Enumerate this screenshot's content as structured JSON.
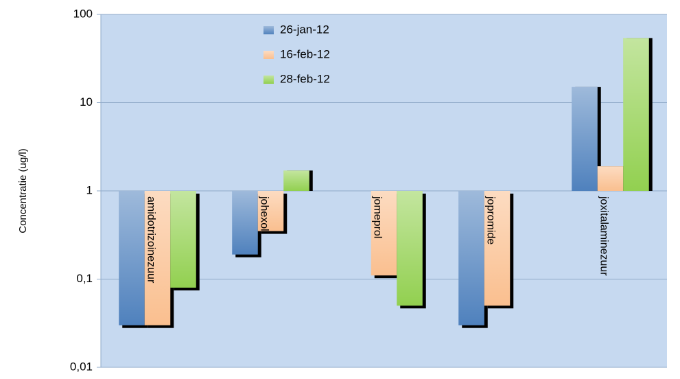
{
  "chart_data": {
    "type": "bar",
    "y_label": "Concentratie (ug/l)",
    "categories": [
      "amidotrizoinezuur",
      "johexol",
      "jomeprol",
      "jopromide",
      "joxitalaminezuur"
    ],
    "series": [
      {
        "name": "26-jan-12",
        "color": "#4f81bd",
        "values": [
          0.03,
          0.19,
          null,
          0.03,
          15
        ]
      },
      {
        "name": "16-feb-12",
        "color": "#fabf8f",
        "values": [
          0.03,
          0.35,
          0.11,
          0.05,
          1.9
        ]
      },
      {
        "name": "28-feb-12",
        "color": "#92d050",
        "values": [
          0.08,
          1.7,
          0.05,
          null,
          54
        ]
      }
    ],
    "ylim": [
      0.01,
      100
    ],
    "yticks": [
      {
        "value": 0.01,
        "label": "0,01"
      },
      {
        "value": 0.1,
        "label": "0,1"
      },
      1,
      10,
      100
    ],
    "log_y": true,
    "grid": true,
    "plot_background": "#c6d9f0"
  }
}
